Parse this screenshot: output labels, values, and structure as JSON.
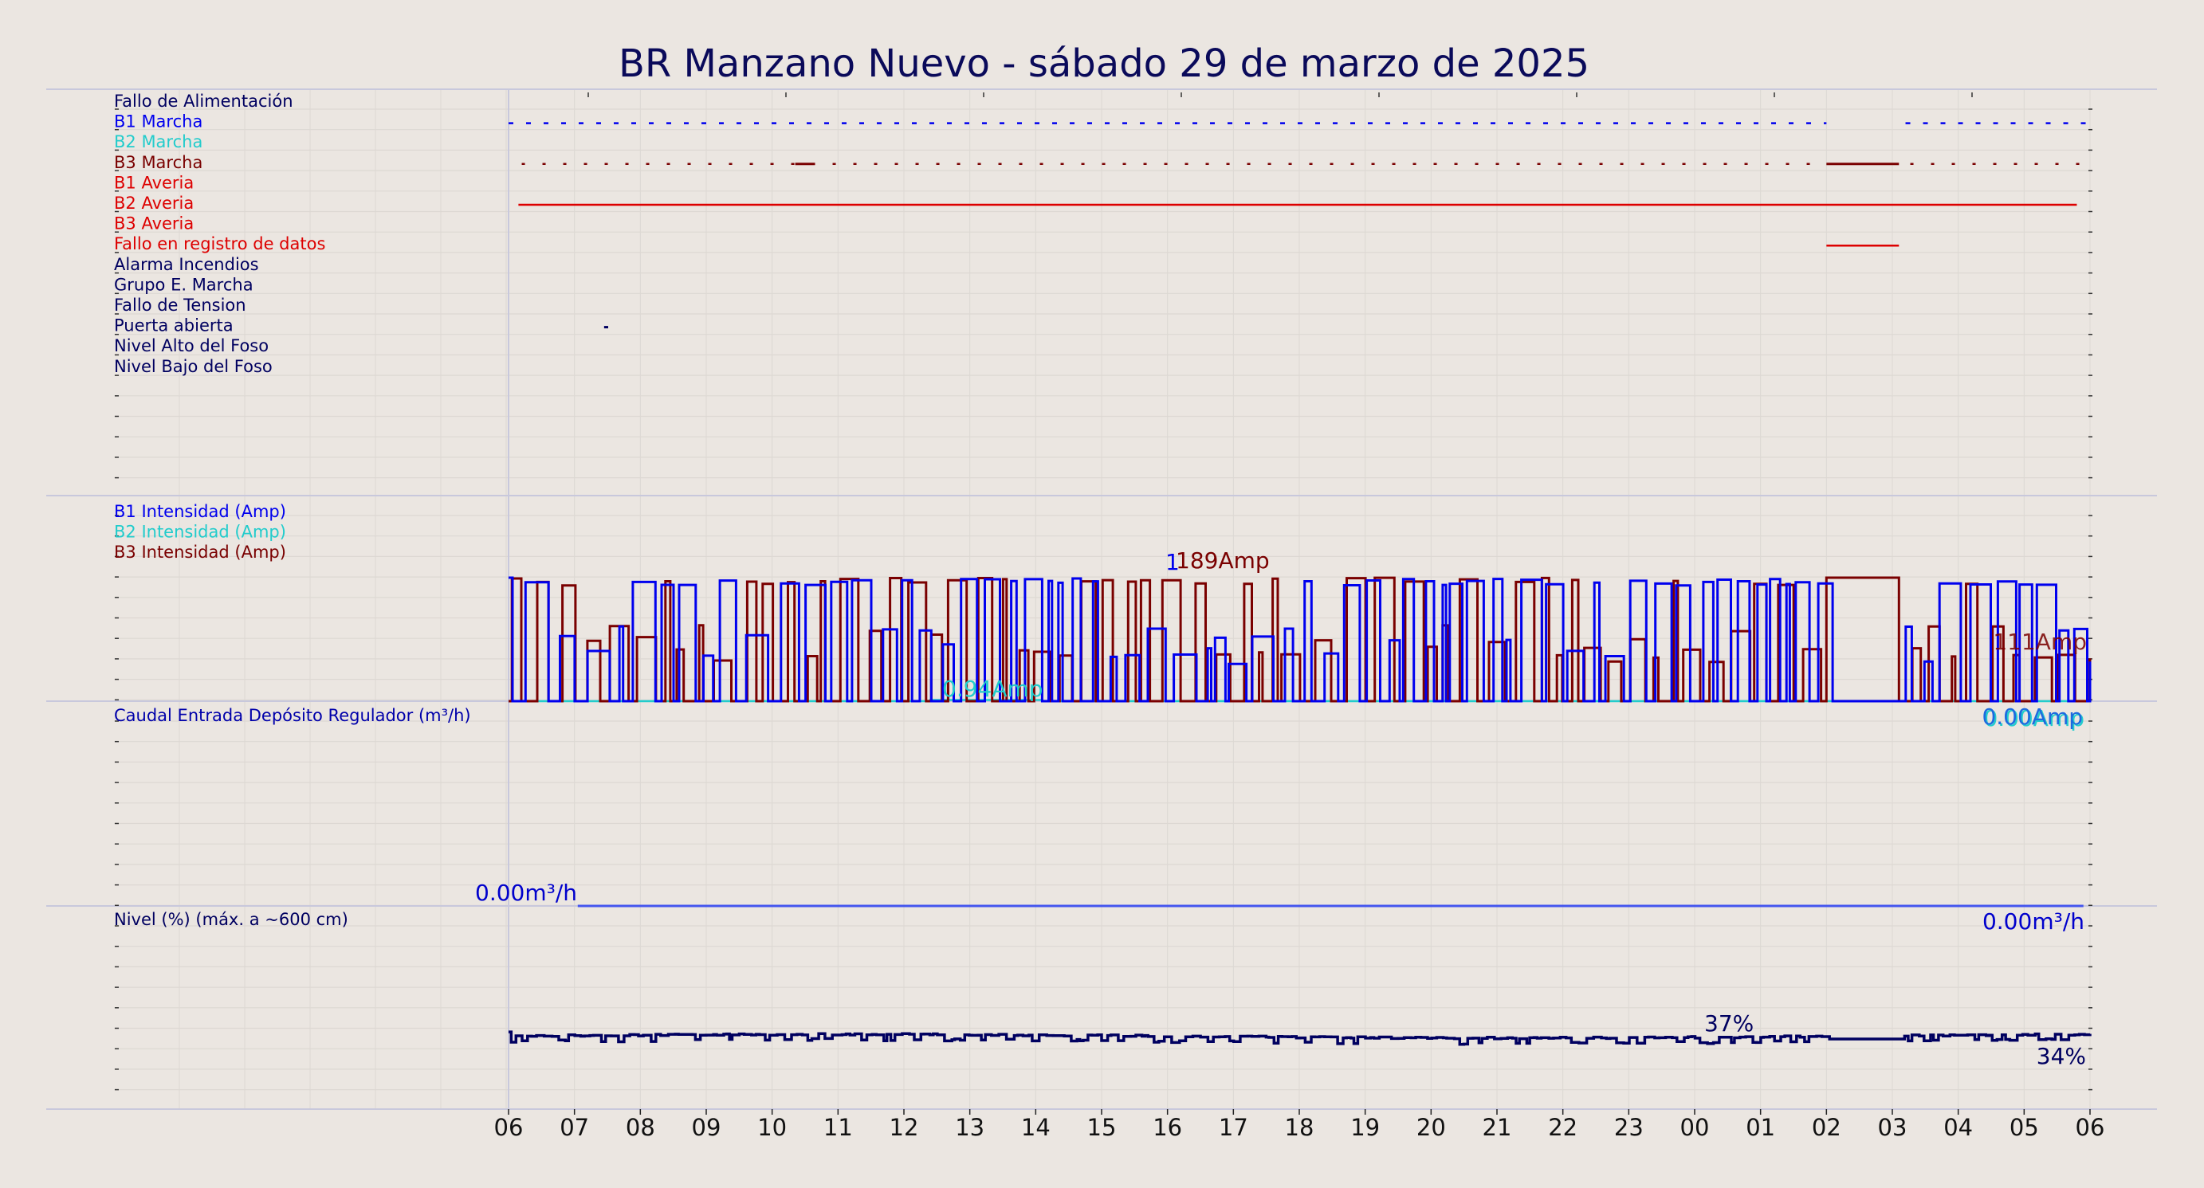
{
  "title": "BR Manzano Nuevo   -   sábado 29 de marzo de 2025",
  "chart_data": {
    "type": "line",
    "x_tick_labels": [
      "06",
      "07",
      "08",
      "09",
      "10",
      "11",
      "12",
      "13",
      "14",
      "15",
      "16",
      "17",
      "18",
      "19",
      "20",
      "21",
      "22",
      "23",
      "00",
      "01",
      "02",
      "03",
      "04",
      "05",
      "06"
    ],
    "colors": {
      "blue": "#0000ee",
      "cyan": "#22cccc",
      "darkred": "#7a0000",
      "red": "#dd0000",
      "navy": "#000060",
      "flow": "#4455ee"
    },
    "panels": [
      {
        "name": "digital",
        "signals": [
          {
            "label": "Fallo de Alimentación",
            "color": "#000060",
            "segments": []
          },
          {
            "label": "B1 Marcha",
            "color": "#0000ee",
            "style": "dashed",
            "segments": [
              [
                0,
                20
              ],
              [
                21.2,
                24
              ]
            ]
          },
          {
            "label": "B2 Marcha",
            "color": "#22cccc",
            "segments": []
          },
          {
            "label": "B3 Marcha",
            "color": "#7a0000",
            "style": "dotted",
            "segments": [
              [
                0.2,
                24
              ]
            ],
            "solid_segments": [
              [
                4.35,
                4.65
              ],
              [
                20,
                21.1
              ]
            ]
          },
          {
            "label": "B1 Averia",
            "color": "#dd0000",
            "segments": []
          },
          {
            "label": "B2 Averia",
            "color": "#dd0000",
            "segments": [
              [
                0.15,
                23.8
              ]
            ]
          },
          {
            "label": "B3 Averia",
            "color": "#dd0000",
            "segments": []
          },
          {
            "label": "Fallo en registro de datos",
            "color": "#dd0000",
            "segments": [
              [
                20,
                21.1
              ]
            ]
          },
          {
            "label": "Alarma Incendios",
            "color": "#000060",
            "segments": []
          },
          {
            "label": "Grupo E. Marcha",
            "color": "#000060",
            "segments": []
          },
          {
            "label": "Fallo de Tension",
            "color": "#000060",
            "segments": []
          },
          {
            "label": "Puerta abierta",
            "color": "#000060",
            "segments": [
              [
                1.45,
                1.5
              ]
            ]
          },
          {
            "label": "Nivel Alto del Foso",
            "color": "#000060",
            "segments": []
          },
          {
            "label": "Nivel Bajo del Foso",
            "color": "#000060",
            "segments": []
          }
        ]
      },
      {
        "name": "intensidad",
        "series": [
          {
            "name": "B1 Intensidad (Amp)",
            "color": "#0000ee"
          },
          {
            "name": "B2 Intensidad (Amp)",
            "color": "#22cccc"
          },
          {
            "name": "B3 Intensidad (Amp)",
            "color": "#7a0000"
          }
        ],
        "annotations": {
          "b3_max": "189Amp",
          "b1_max_partial": "1",
          "b2_value": "0.94Amp",
          "b3_last": "111Amp",
          "b1_last": "0.00Amp",
          "b2_last": "0.00Amp"
        }
      },
      {
        "name": "caudal",
        "series": [
          {
            "name": "Caudal Entrada Depósito Regulador (m³/h)",
            "color": "#4455ee",
            "value": 0
          }
        ],
        "annotations": {
          "first": "0.00m³/h",
          "last": "0.00m³/h"
        }
      },
      {
        "name": "nivel",
        "series": [
          {
            "name": "Nivel (%) (máx. a ~600 cm)",
            "color": "#000060"
          }
        ],
        "annotations": {
          "max": "37%",
          "last": "34%"
        }
      }
    ]
  }
}
